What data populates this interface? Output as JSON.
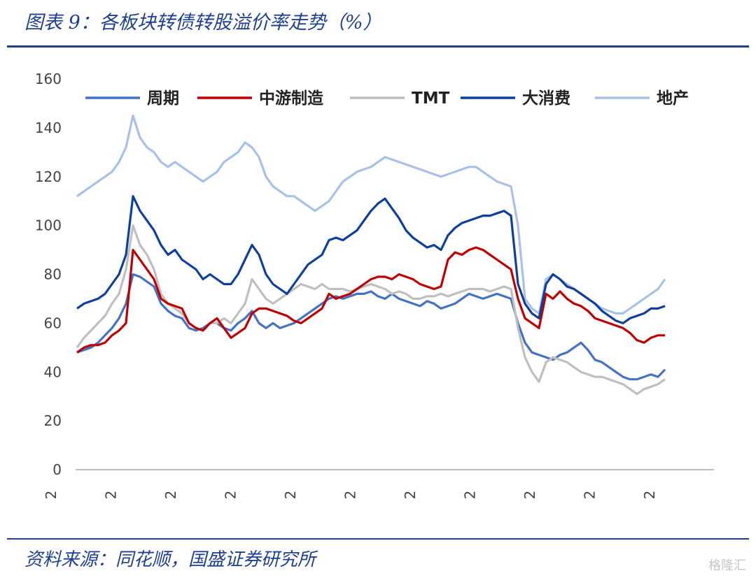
{
  "header": {
    "title": "图表 9：各板块转债转股溢价率走势（%）"
  },
  "footer": {
    "source": "资料来源：同花顺，国盛证券研究所",
    "watermark": "格隆汇"
  },
  "chart_data": {
    "type": "line",
    "ylim": [
      0,
      160
    ],
    "yticks": [
      0,
      20,
      40,
      60,
      80,
      100,
      120,
      140,
      160
    ],
    "xticks": [
      "2",
      "2",
      "2",
      "2",
      "2",
      "2",
      "2",
      "2",
      "2",
      "2",
      "2"
    ],
    "n": 85,
    "legend_position": "top",
    "grid": false,
    "series": [
      {
        "name": "周期",
        "color": "#4472c4",
        "values": [
          48,
          49,
          50,
          52,
          55,
          58,
          62,
          68,
          80,
          79,
          77,
          75,
          68,
          65,
          63,
          62,
          58,
          57,
          58,
          60,
          60,
          58,
          57,
          60,
          62,
          65,
          60,
          58,
          60,
          58,
          59,
          60,
          62,
          64,
          66,
          68,
          70,
          71,
          70,
          71,
          72,
          72,
          73,
          71,
          70,
          72,
          70,
          69,
          68,
          67,
          69,
          68,
          66,
          67,
          68,
          70,
          72,
          71,
          70,
          71,
          72,
          71,
          70,
          60,
          52,
          48,
          47,
          46,
          45,
          47,
          48,
          50,
          52,
          49,
          45,
          44,
          42,
          40,
          38,
          37,
          37,
          38,
          39,
          38,
          41
        ]
      },
      {
        "name": "中游制造",
        "color": "#c00000",
        "values": [
          48,
          50,
          51,
          51,
          52,
          55,
          57,
          60,
          90,
          86,
          82,
          78,
          70,
          68,
          67,
          66,
          60,
          58,
          57,
          60,
          62,
          58,
          54,
          56,
          58,
          64,
          66,
          66,
          65,
          64,
          63,
          61,
          60,
          62,
          64,
          66,
          72,
          70,
          71,
          72,
          74,
          76,
          78,
          79,
          79,
          78,
          80,
          79,
          78,
          76,
          75,
          74,
          75,
          86,
          89,
          88,
          90,
          91,
          90,
          88,
          86,
          84,
          82,
          70,
          62,
          60,
          58,
          72,
          70,
          73,
          70,
          68,
          67,
          65,
          62,
          61,
          60,
          59,
          58,
          56,
          53,
          52,
          54,
          55,
          55
        ]
      },
      {
        "name": "TMT",
        "color": "#bfbfbf",
        "values": [
          50,
          54,
          57,
          60,
          63,
          68,
          72,
          82,
          100,
          92,
          88,
          82,
          72,
          68,
          66,
          64,
          60,
          58,
          57,
          60,
          60,
          62,
          60,
          64,
          68,
          78,
          74,
          70,
          68,
          70,
          72,
          74,
          76,
          75,
          74,
          76,
          74,
          74,
          74,
          73,
          74,
          75,
          76,
          75,
          74,
          72,
          73,
          72,
          70,
          70,
          71,
          71,
          72,
          71,
          72,
          73,
          74,
          74,
          74,
          73,
          74,
          75,
          74,
          58,
          46,
          40,
          36,
          44,
          46,
          45,
          44,
          42,
          40,
          39,
          38,
          38,
          37,
          36,
          35,
          33,
          31,
          33,
          34,
          35,
          37
        ]
      },
      {
        "name": "大消费",
        "color": "#0f3f9c",
        "values": [
          66,
          68,
          69,
          70,
          72,
          76,
          80,
          88,
          112,
          106,
          102,
          98,
          92,
          88,
          90,
          86,
          84,
          82,
          78,
          80,
          78,
          76,
          76,
          80,
          86,
          92,
          88,
          80,
          76,
          74,
          72,
          76,
          80,
          84,
          86,
          88,
          94,
          95,
          94,
          96,
          98,
          102,
          106,
          109,
          111,
          107,
          103,
          98,
          95,
          93,
          91,
          92,
          90,
          96,
          99,
          101,
          102,
          103,
          104,
          104,
          105,
          106,
          104,
          76,
          68,
          64,
          62,
          76,
          80,
          78,
          75,
          74,
          72,
          70,
          68,
          65,
          63,
          61,
          60,
          62,
          63,
          64,
          66,
          66,
          67
        ]
      },
      {
        "name": "地产",
        "color": "#a9c1e8",
        "values": [
          112,
          114,
          116,
          118,
          120,
          122,
          126,
          132,
          145,
          136,
          132,
          130,
          126,
          124,
          126,
          124,
          122,
          120,
          118,
          120,
          122,
          126,
          128,
          130,
          134,
          132,
          128,
          120,
          116,
          114,
          112,
          112,
          110,
          108,
          106,
          108,
          110,
          114,
          118,
          120,
          122,
          123,
          124,
          126,
          128,
          127,
          126,
          125,
          124,
          123,
          122,
          121,
          120,
          121,
          122,
          123,
          124,
          124,
          122,
          120,
          118,
          117,
          116,
          100,
          70,
          66,
          64,
          78,
          80,
          78,
          76,
          74,
          72,
          70,
          68,
          66,
          65,
          64,
          64,
          66,
          68,
          70,
          72,
          74,
          78
        ]
      }
    ]
  }
}
